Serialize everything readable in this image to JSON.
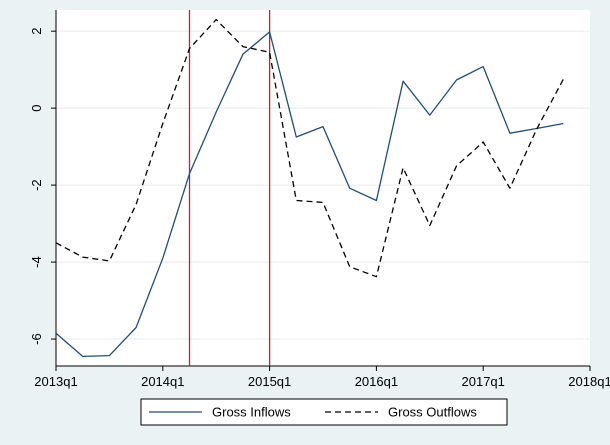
{
  "chart_data": {
    "type": "line",
    "x": [
      0,
      1,
      2,
      3,
      4,
      5,
      6,
      7,
      8,
      9,
      10,
      11,
      12,
      13,
      14,
      15,
      16,
      17,
      18,
      19
    ],
    "xticks": [
      {
        "v": 0,
        "label": "2013q1"
      },
      {
        "v": 4,
        "label": "2014q1"
      },
      {
        "v": 8,
        "label": "2015q1"
      },
      {
        "v": 12,
        "label": "2016q1"
      },
      {
        "v": 16,
        "label": "2017q1"
      },
      {
        "v": 20,
        "label": "2018q1"
      }
    ],
    "yticks": [
      {
        "v": -6,
        "label": "-6"
      },
      {
        "v": -4,
        "label": "-4"
      },
      {
        "v": -2,
        "label": "-2"
      },
      {
        "v": 0,
        "label": "0"
      },
      {
        "v": 2,
        "label": "2"
      }
    ],
    "xlim": [
      0,
      20
    ],
    "ylim": [
      -6.7,
      2.55
    ],
    "grid": true,
    "legend_position": "bottom",
    "vlines": [
      {
        "x": 5,
        "color": "#c0203a"
      },
      {
        "x": 8,
        "color": "#c0203a"
      }
    ],
    "series": [
      {
        "name": "Gross Inflows",
        "style": "solid",
        "color": "#1f4e79",
        "values": [
          -5.85,
          -6.45,
          -6.43,
          -5.7,
          -3.9,
          -1.7,
          -0.1,
          1.4,
          1.98,
          -0.75,
          -0.48,
          -2.08,
          -2.4,
          0.7,
          -0.18,
          0.73,
          1.08,
          -0.65,
          -0.53,
          -0.4
        ]
      },
      {
        "name": "Gross Outflows",
        "style": "dashed",
        "color": "#000000",
        "values": [
          -3.5,
          -3.87,
          -3.97,
          -2.5,
          -0.4,
          1.55,
          2.3,
          1.6,
          1.45,
          -2.4,
          -2.45,
          -4.12,
          -4.38,
          -1.55,
          -3.05,
          -1.5,
          -0.88,
          -2.08,
          -0.55,
          0.75
        ]
      }
    ]
  }
}
